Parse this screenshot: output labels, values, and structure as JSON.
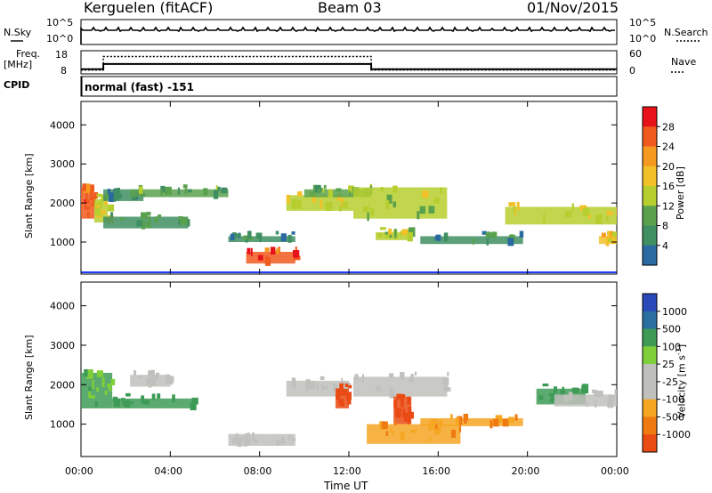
{
  "header": {
    "station": "Kerguelen (fitACF)",
    "beam": "Beam 03",
    "date": "01/Nov/2015"
  },
  "status_panels": {
    "nsky_label": "N.Sky",
    "nsky_ticks": [
      "10^5",
      "10^0"
    ],
    "nsearch_label": "N.Search",
    "nsearch_ticks": [
      "10^5",
      "10^0"
    ],
    "freq_label_line1": "Freq.",
    "freq_label_line2": "[MHz]",
    "freq_ticks": [
      "18",
      "8"
    ],
    "nave_label": "Nave",
    "nave_ticks": [
      "60",
      "0"
    ],
    "cpid_label": "CPID",
    "cpid_text": "normal (fast) -151"
  },
  "colorbars": {
    "power": {
      "title": "Power [dB]",
      "ticks": [
        "28",
        "24",
        "20",
        "16",
        "12",
        "8",
        "4"
      ],
      "colors": [
        "#e8131a",
        "#f05a1e",
        "#f59a20",
        "#f2c12a",
        "#b6ce2e",
        "#5aa14d",
        "#3f8f62",
        "#2a6aa0",
        "#2c4fa8",
        "#1f3cff"
      ]
    },
    "velocity": {
      "title": "Velocity [m s",
      "title_sup": "-1",
      "title_end": "]",
      "ticks": [
        "1000",
        "500",
        "100",
        "25",
        "-25",
        "-100",
        "-500",
        "-1000"
      ],
      "colors": [
        "#2a49b8",
        "#2b6fa0",
        "#3e9b56",
        "#7fcf3a",
        "#c0c0bc",
        "#c0c0bc",
        "#f5a623",
        "#f07a12",
        "#ea4b14",
        "#e81010"
      ]
    }
  },
  "axes": {
    "ylabel": "Slant Range [km]",
    "yticks": [
      "4000",
      "3000",
      "2000",
      "1000"
    ],
    "xticks": [
      "00:00",
      "04:00",
      "08:00",
      "12:00",
      "16:00",
      "20:00",
      "00:00"
    ],
    "xlabel": "Time UT"
  },
  "chart_data": {
    "type": "heatmap",
    "x_range_hours": [
      0,
      24
    ],
    "y_range_km": [
      180,
      4600
    ],
    "status": {
      "frequency_mhz": [
        [
          0,
          1,
          10
        ],
        [
          1,
          13,
          12.3
        ],
        [
          13,
          24,
          10
        ]
      ],
      "nave": [
        [
          0,
          1,
          10
        ],
        [
          1,
          13,
          45
        ],
        [
          13,
          24,
          10
        ]
      ]
    },
    "power_db": [
      {
        "t": [
          0,
          0.6
        ],
        "r": [
          1600,
          2400
        ],
        "v": 26
      },
      {
        "t": [
          0.6,
          1.2
        ],
        "r": [
          1500,
          2100
        ],
        "v": 18
      },
      {
        "t": [
          1.0,
          4.8
        ],
        "r": [
          1350,
          1650
        ],
        "v": 12
      },
      {
        "t": [
          1.0,
          2.8
        ],
        "r": [
          2050,
          2350
        ],
        "v": 10
      },
      {
        "t": [
          2.2,
          6.6
        ],
        "r": [
          2150,
          2350
        ],
        "v": 13
      },
      {
        "t": [
          6.6,
          9.6
        ],
        "r": [
          1000,
          1150
        ],
        "v": 11
      },
      {
        "t": [
          7.4,
          9.6
        ],
        "r": [
          450,
          750
        ],
        "v": 26
      },
      {
        "t": [
          9.2,
          12.2
        ],
        "r": [
          1800,
          2200
        ],
        "v": 18
      },
      {
        "t": [
          10.0,
          13.0
        ],
        "r": [
          2150,
          2350
        ],
        "v": 13
      },
      {
        "t": [
          12.2,
          16.4
        ],
        "r": [
          1600,
          2400
        ],
        "v": 16
      },
      {
        "t": [
          13.2,
          14.8
        ],
        "r": [
          1050,
          1250
        ],
        "v": 16
      },
      {
        "t": [
          15.2,
          19.8
        ],
        "r": [
          950,
          1150
        ],
        "v": 10
      },
      {
        "t": [
          19.0,
          24.0
        ],
        "r": [
          1450,
          1900
        ],
        "v": 18
      },
      {
        "t": [
          23.2,
          24.0
        ],
        "r": [
          950,
          1150
        ],
        "v": 20
      }
    ],
    "velocity_ms": [
      {
        "t": [
          0,
          1.4
        ],
        "r": [
          1400,
          2300
        ],
        "v": 60
      },
      {
        "t": [
          1.4,
          5.0
        ],
        "r": [
          1400,
          1650
        ],
        "v": 80
      },
      {
        "t": [
          2.2,
          4.0
        ],
        "r": [
          1950,
          2250
        ],
        "v": 0
      },
      {
        "t": [
          6.6,
          9.6
        ],
        "r": [
          450,
          750
        ],
        "v": 0
      },
      {
        "t": [
          9.2,
          12.0
        ],
        "r": [
          1700,
          2100
        ],
        "v": 0
      },
      {
        "t": [
          11.4,
          12.0
        ],
        "r": [
          1400,
          1900
        ],
        "v": -900
      },
      {
        "t": [
          12.2,
          16.4
        ],
        "r": [
          1700,
          2200
        ],
        "v": 0
      },
      {
        "t": [
          14.0,
          14.8
        ],
        "r": [
          1000,
          1700
        ],
        "v": -900
      },
      {
        "t": [
          12.8,
          17.0
        ],
        "r": [
          500,
          1000
        ],
        "v": -300
      },
      {
        "t": [
          15.2,
          19.8
        ],
        "r": [
          950,
          1150
        ],
        "v": -300
      },
      {
        "t": [
          20.4,
          22.6
        ],
        "r": [
          1500,
          1900
        ],
        "v": 80
      },
      {
        "t": [
          21.2,
          24.0
        ],
        "r": [
          1450,
          1750
        ],
        "v": 0
      }
    ]
  }
}
